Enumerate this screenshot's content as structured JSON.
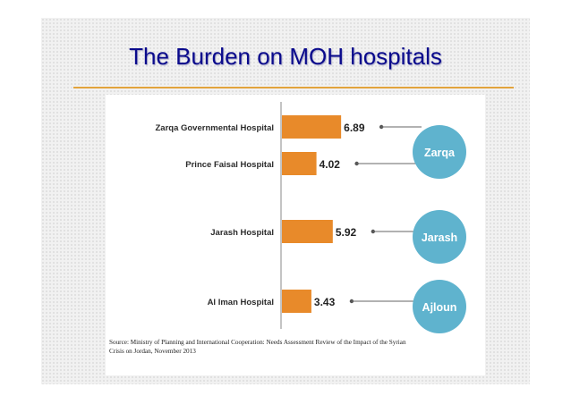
{
  "slide": {
    "title": "The Burden on MOH hospitals",
    "source_line1": "Source: Ministry of Planning and International Cooperation: Needs Assessment Review of the Impact of the Syrian",
    "source_line2": "Crisis on Jordan, November 2013"
  },
  "colors": {
    "bar": "#e88a2a",
    "bubble": "#5fb3ce",
    "title": "#0a0a8c",
    "rule": "#e2a33c"
  },
  "chart_data": {
    "type": "bar",
    "orientation": "horizontal",
    "categories": [
      "Zarqa Governmental Hospital",
      "Prince Faisal Hospital",
      "Jarash Hospital",
      "Al Iman Hospital"
    ],
    "values": [
      6.89,
      4.02,
      5.92,
      3.43
    ],
    "value_labels": [
      "6.89",
      "4.02",
      "5.92",
      "3.43"
    ],
    "groups": [
      {
        "label": "Zarqa",
        "members": [
          0,
          1
        ]
      },
      {
        "label": "Jarash",
        "members": [
          2
        ]
      },
      {
        "label": "Ajloun",
        "members": [
          3
        ]
      }
    ]
  }
}
